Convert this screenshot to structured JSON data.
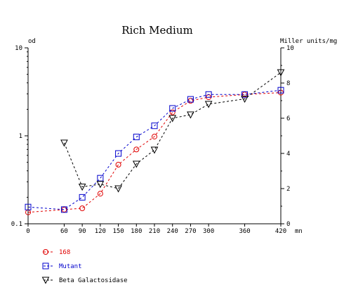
{
  "chart_data": {
    "type": "line",
    "title": "Rich Medium",
    "x_unit_label": "mn",
    "left_axis_label": "od",
    "right_axis_label": "Miller units/mg",
    "x_ticks": [
      0,
      60,
      90,
      120,
      150,
      180,
      210,
      240,
      270,
      300,
      360,
      420
    ],
    "xlim": [
      0,
      420
    ],
    "left_axis": {
      "scale": "log",
      "ylim": [
        0.1,
        10
      ],
      "tick_values": [
        0.1,
        1,
        10
      ],
      "tick_labels": [
        "0.1",
        "1",
        "10"
      ]
    },
    "right_axis": {
      "scale": "linear",
      "ylim": [
        0,
        10
      ],
      "tick_values": [
        0,
        2,
        4,
        6,
        8,
        10
      ],
      "tick_labels": [
        "0",
        "2",
        "4",
        "6",
        "8",
        "10"
      ]
    },
    "grid": false,
    "legend_position": "bottom-left",
    "series": [
      {
        "name": "168",
        "axis": "left",
        "marker": "circle",
        "color": "#e00000",
        "x": [
          0,
          60,
          90,
          120,
          150,
          180,
          210,
          240,
          270,
          300,
          360,
          420
        ],
        "y": [
          0.135,
          0.145,
          0.15,
          0.22,
          0.47,
          0.7,
          0.98,
          1.85,
          2.5,
          2.75,
          2.95,
          3.1
        ]
      },
      {
        "name": "Mutant",
        "axis": "left",
        "marker": "square",
        "color": "#0000cc",
        "x": [
          0,
          60,
          90,
          120,
          150,
          180,
          210,
          240,
          270,
          300,
          360,
          420
        ],
        "y": [
          0.155,
          0.145,
          0.2,
          0.33,
          0.63,
          0.97,
          1.3,
          2.05,
          2.6,
          2.95,
          2.95,
          3.3
        ]
      },
      {
        "name": "Beta Galactosidase",
        "axis": "right",
        "marker": "triangle-down",
        "color": "#000000",
        "x": [
          60,
          90,
          120,
          150,
          180,
          210,
          240,
          270,
          300,
          360,
          420
        ],
        "y": [
          4.6,
          2.1,
          2.25,
          2.0,
          3.4,
          4.2,
          6.0,
          6.2,
          6.8,
          7.1,
          8.6
        ]
      }
    ]
  }
}
